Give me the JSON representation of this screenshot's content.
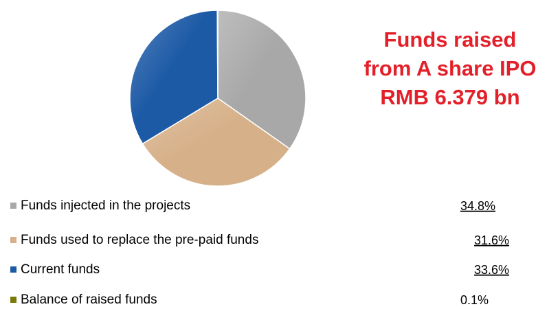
{
  "chart_data": {
    "type": "pie",
    "title": [
      "Funds raised",
      "from A share IPO",
      "RMB 6.379 bn"
    ],
    "categories": [
      "Funds injected in the projects",
      "Funds used to replace the pre-paid funds",
      "Current funds",
      "Balance of raised funds"
    ],
    "values": [
      34.8,
      31.6,
      33.6,
      0.1
    ],
    "value_labels": [
      "34.8%",
      "31.6%",
      "33.6%",
      "0.1%"
    ],
    "colors": [
      "#a8a8a8",
      "#d6b088",
      "#1d5aa6",
      "#7a7a0a"
    ]
  }
}
